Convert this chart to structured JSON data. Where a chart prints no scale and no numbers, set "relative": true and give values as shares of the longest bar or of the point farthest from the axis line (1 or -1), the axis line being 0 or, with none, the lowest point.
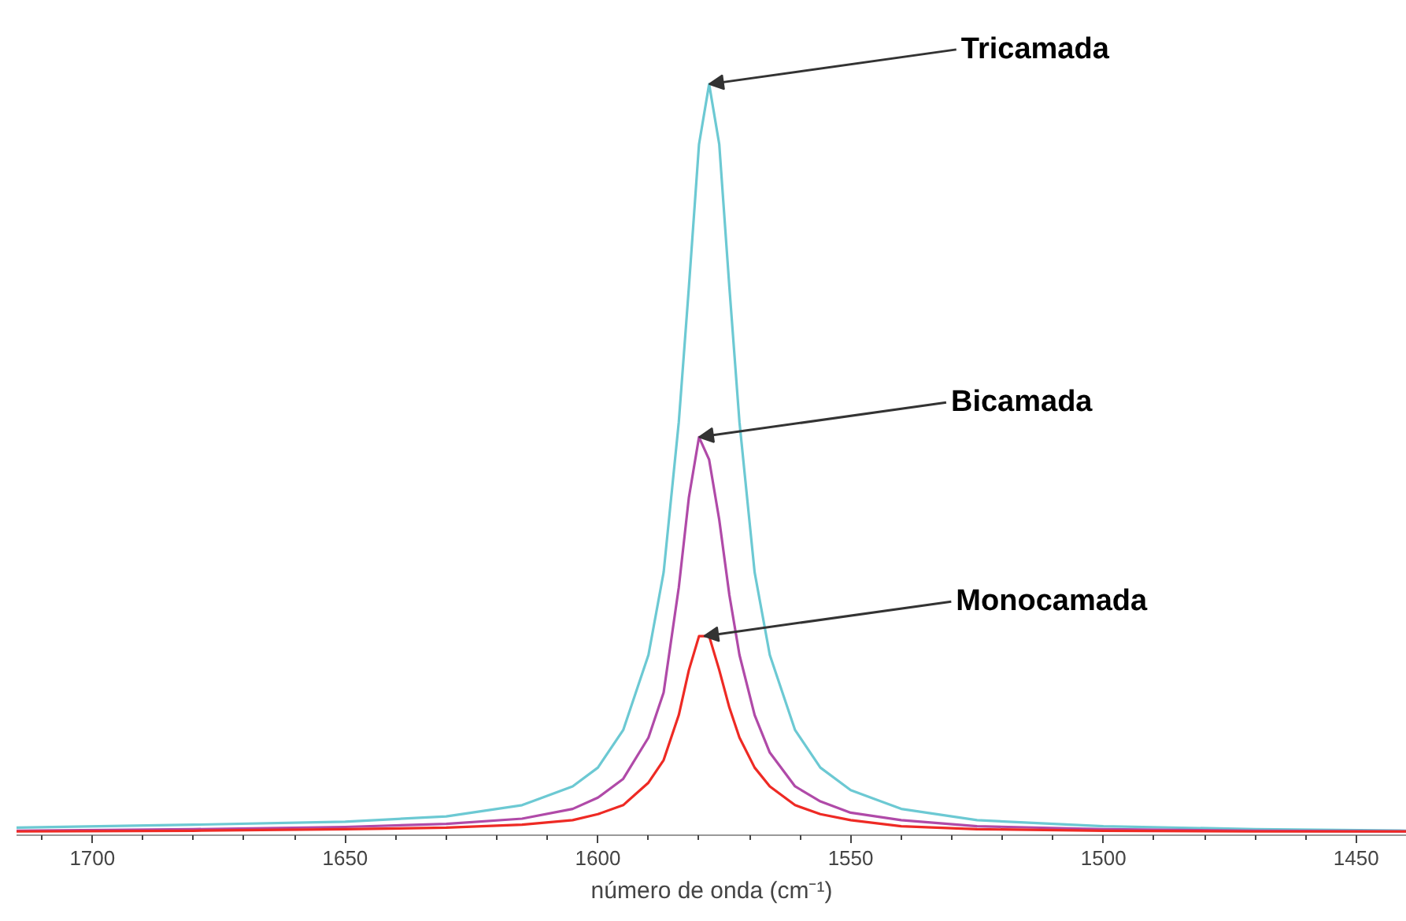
{
  "chart_data": {
    "type": "line",
    "relative": true,
    "xlabel": "número de onda (cm⁻¹)",
    "x": [
      1715,
      1680,
      1650,
      1630,
      1615,
      1605,
      1600,
      1595,
      1590,
      1587,
      1584,
      1582,
      1580,
      1578,
      1576,
      1574,
      1572,
      1569,
      1566,
      1561,
      1556,
      1550,
      1540,
      1525,
      1500,
      1470,
      1440
    ],
    "xlim": [
      1715,
      1440
    ],
    "xticks": [
      1700,
      1650,
      1600,
      1550,
      1500,
      1450
    ],
    "grid": false,
    "marker": "none",
    "line_style": "solid",
    "series": [
      {
        "color": "#6cc9d3",
        "values": [
          0.01,
          0.014,
          0.018,
          0.025,
          0.04,
          0.065,
          0.09,
          0.14,
          0.24,
          0.35,
          0.55,
          0.73,
          0.92,
          1,
          0.92,
          0.73,
          0.55,
          0.35,
          0.24,
          0.14,
          0.09,
          0.06,
          0.035,
          0.02,
          0.012,
          0.008,
          0.006
        ]
      },
      {
        "color": "#b04aa8",
        "values": [
          0.006,
          0.008,
          0.011,
          0.015,
          0.022,
          0.035,
          0.05,
          0.075,
          0.13,
          0.19,
          0.33,
          0.45,
          0.53,
          0.5,
          0.42,
          0.32,
          0.24,
          0.16,
          0.11,
          0.065,
          0.045,
          0.03,
          0.02,
          0.012,
          0.008,
          0.006,
          0.005
        ]
      },
      {
        "color": "#ee2a24",
        "values": [
          0.005,
          0.006,
          0.008,
          0.01,
          0.014,
          0.02,
          0.028,
          0.04,
          0.07,
          0.1,
          0.16,
          0.22,
          0.265,
          0.265,
          0.22,
          0.17,
          0.13,
          0.09,
          0.065,
          0.04,
          0.028,
          0.02,
          0.012,
          0.008,
          0.006,
          0.005,
          0.005
        ]
      }
    ],
    "annotations": [
      {
        "text": "Tricamada",
        "x": 1578,
        "y": 1
      },
      {
        "text": "Bicamada",
        "x": 1580,
        "y": 0.53
      },
      {
        "text": "Monocamada",
        "x": 1579,
        "y": 0.265
      }
    ]
  }
}
